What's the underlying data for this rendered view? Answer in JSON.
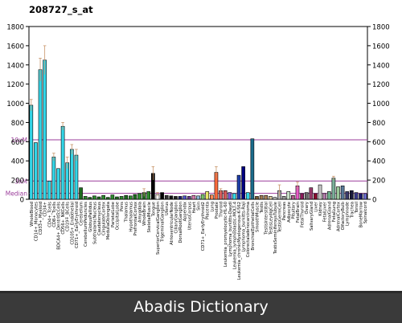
{
  "chart_data": {
    "type": "bar",
    "title": "208727_s_at",
    "ylim": [
      0,
      1800
    ],
    "yticks": [
      "0",
      "200",
      "400",
      "600",
      "800",
      "1000",
      "1200",
      "1400",
      "1600",
      "1800"
    ],
    "reference_lines": [
      {
        "label": "10xM",
        "value": 620,
        "color": "#9b3d9b"
      },
      {
        "label": "3xM",
        "value": 190,
        "color": "#9b3d9b"
      },
      {
        "label": "Median",
        "value": 62,
        "color": "#9b3d9b"
      }
    ],
    "categories": [
      "WholeBlood",
      "CD14+_Monocytes",
      "CD33+_Myeloid",
      "CD34+",
      "CD4+_Tcells",
      "CD8+_Tcells",
      "BDCA4+_DentriticCells",
      "CD56+_NKCells",
      "CD19+_BCells",
      "CD105+_Endothelial",
      "CD71+_EarlyErythroid",
      "Cerebellum",
      "CerebellumPeduncles",
      "GlobusPallidus",
      "SubthalamicNucleus",
      "Caudatenucleus",
      "CingulateCortex",
      "MedullaOblongata",
      "ParietalLobe",
      "OccipitalLobe",
      "Pons",
      "Thalamus",
      "Hypothalamus",
      "PrefrontalCortex",
      "Amygdala",
      "WholeBrain",
      "SkeletalMuscle",
      "Tongue",
      "SuperiorCervicalGanglion",
      "TrigeminalGanglion",
      "Uterus",
      "AtrioventricularNode",
      "CiliaryGanglion",
      "DorsalRootGanglion",
      "Appendix",
      "UterusCorpus",
      "Heart",
      "Skin",
      "CD71+_EarlyErythroid2",
      "Placenta",
      "Lung",
      "Prostate",
      "Thyroid",
      "Leukemia_promyelocytic-HL-60",
      "Lymphoma_burkitts-Daudi",
      "Leukemia_lymphoblastic-MOLT-4",
      "Leukemia_chronicMyelogenous-K-562",
      "Lymphoma_burkitts-Raji",
      "Colorectaladenocarcinoma",
      "BronchialEpithelialCells",
      "SmoothMuscle",
      "Testis",
      "TestisInterstitial",
      "TestisLeydigCell",
      "TestisSeminiferousTubule",
      "TestisGermCell",
      "Pancreas",
      "Adipocyte",
      "Pituitary",
      "FetalBrain",
      "FetalThyroid",
      "Ovary",
      "SalivaryGland",
      "Liver",
      "Kidney",
      "FetalLiver",
      "AdrenalGland",
      "FetalLung",
      "AdrenalCortex",
      "OlfactoryBulb",
      "Lymphnode",
      "Trachea",
      "Tonsil",
      "BoneMarrow",
      "Spinalcord"
    ],
    "values": [
      980,
      590,
      1350,
      1450,
      190,
      440,
      320,
      760,
      380,
      520,
      460,
      120,
      30,
      20,
      35,
      25,
      40,
      20,
      45,
      25,
      30,
      40,
      35,
      50,
      60,
      70,
      80,
      270,
      50,
      70,
      40,
      35,
      30,
      30,
      35,
      30,
      40,
      35,
      50,
      80,
      45,
      280,
      90,
      90,
      70,
      60,
      250,
      340,
      70,
      630,
      30,
      40,
      40,
      30,
      20,
      90,
      30,
      80,
      40,
      140,
      60,
      70,
      120,
      60,
      150,
      60,
      80,
      220,
      130,
      140,
      80,
      90,
      70,
      60,
      60
    ],
    "errors": [
      60,
      0,
      120,
      150,
      0,
      40,
      0,
      40,
      60,
      50,
      60,
      0,
      0,
      0,
      0,
      0,
      0,
      0,
      0,
      0,
      0,
      0,
      0,
      0,
      0,
      40,
      0,
      70,
      20,
      0,
      0,
      0,
      0,
      0,
      0,
      0,
      0,
      0,
      0,
      0,
      0,
      60,
      20,
      0,
      0,
      0,
      0,
      0,
      0,
      0,
      0,
      0,
      0,
      0,
      0,
      60,
      0,
      0,
      0,
      40,
      0,
      0,
      0,
      0,
      0,
      0,
      0,
      20,
      0,
      0,
      0,
      0,
      0,
      0,
      0
    ],
    "colors": [
      "#33d6e8",
      "#33d6e8",
      "#33d6e8",
      "#33d6e8",
      "#33d6e8",
      "#33d6e8",
      "#33d6e8",
      "#33d6e8",
      "#33d6e8",
      "#33d6e8",
      "#33d6e8",
      "#1f6b1f",
      "#2e8b2e",
      "#1f6b1f",
      "#2e8b2e",
      "#1f6b1f",
      "#2e8b2e",
      "#1f6b1f",
      "#2e8b2e",
      "#1f6b1f",
      "#2e8b2e",
      "#1f6b1f",
      "#2e8b2e",
      "#1f6b1f",
      "#2e8b2e",
      "#1f6b1f",
      "#2e8b2e",
      "#000000",
      "#ffffff",
      "#000000",
      "#333333",
      "#111111",
      "#222222",
      "#1f1f6b",
      "#5555cc",
      "#6a3a8b",
      "#d77ab0",
      "#8ab6d6",
      "#77c26a",
      "#e8e86a",
      "#ff8855",
      "#ff6b3d",
      "#d65a5a",
      "#d65a5a",
      "#7a55cc",
      "#33d6e8",
      "#1f3fa8",
      "#000080",
      "#33d6e8",
      "#1a6b8b",
      "#7a5a33",
      "#a07a55",
      "#a8805a",
      "#d6c49a",
      "#c8c8c8",
      "#b0b0b0",
      "#9a9a9a",
      "#c8e0c8",
      "#b25a8b",
      "#e85ac8",
      "#8b1a5a",
      "#6b6b6b",
      "#9a3a6b",
      "#8b0a2e",
      "#c8c8c8",
      "#b07aa8",
      "#6bb08b",
      "#7ab09a",
      "#9ac89a",
      "#5a7a9a",
      "#3a3a6b",
      "#1a1a3a",
      "#3a3a8b",
      "#1a1a6b",
      "#6b6bcc"
    ]
  },
  "footer": {
    "brand": "Abadis Dictionary"
  }
}
